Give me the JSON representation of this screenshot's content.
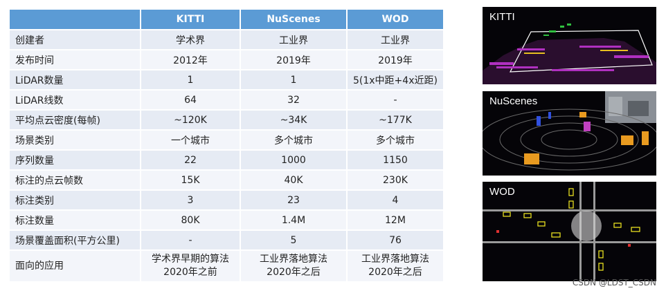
{
  "table": {
    "headers": [
      "KITTI",
      "NuScenes",
      "WOD"
    ],
    "rows": [
      {
        "label": "创建者",
        "values": [
          "学术界",
          "工业界",
          "工业界"
        ]
      },
      {
        "label": "发布时间",
        "values": [
          "2012年",
          "2019年",
          "2019年"
        ]
      },
      {
        "label": "LiDAR数量",
        "values": [
          "1",
          "1",
          "5(1x中距+4x近距)"
        ]
      },
      {
        "label": "LiDAR线数",
        "values": [
          "64",
          "32",
          "-"
        ]
      },
      {
        "label": "平均点云密度(每帧)",
        "values": [
          "~120K",
          "~34K",
          "~177K"
        ]
      },
      {
        "label": "场景类别",
        "values": [
          "一个城市",
          "多个城市",
          "多个城市"
        ]
      },
      {
        "label": "序列数量",
        "values": [
          "22",
          "1000",
          "1150"
        ]
      },
      {
        "label": "标注的点云帧数",
        "values": [
          "15K",
          "40K",
          "230K"
        ]
      },
      {
        "label": "标注类别",
        "values": [
          "3",
          "23",
          "4"
        ]
      },
      {
        "label": "标注数量",
        "values": [
          "80K",
          "1.4M",
          "12M"
        ]
      },
      {
        "label": "场景覆盖面积(平方公里)",
        "values": [
          "-",
          "5",
          "76"
        ]
      },
      {
        "label": "面向的应用",
        "values": [
          [
            "学术界早期的算法",
            "2020年之前"
          ],
          [
            "工业界落地算法",
            "2020年之后"
          ],
          [
            "工业界落地算法",
            "2020年之后"
          ]
        ]
      }
    ]
  },
  "panels": [
    {
      "title": "KITTI"
    },
    {
      "title": "NuScenes"
    },
    {
      "title": "WOD"
    }
  ],
  "watermark": "CSDN @LDST_CSDN",
  "colors": {
    "header_bg": "#5b9bd5",
    "row_odd": "#e6ebf4",
    "row_even": "#f3f5fa"
  }
}
